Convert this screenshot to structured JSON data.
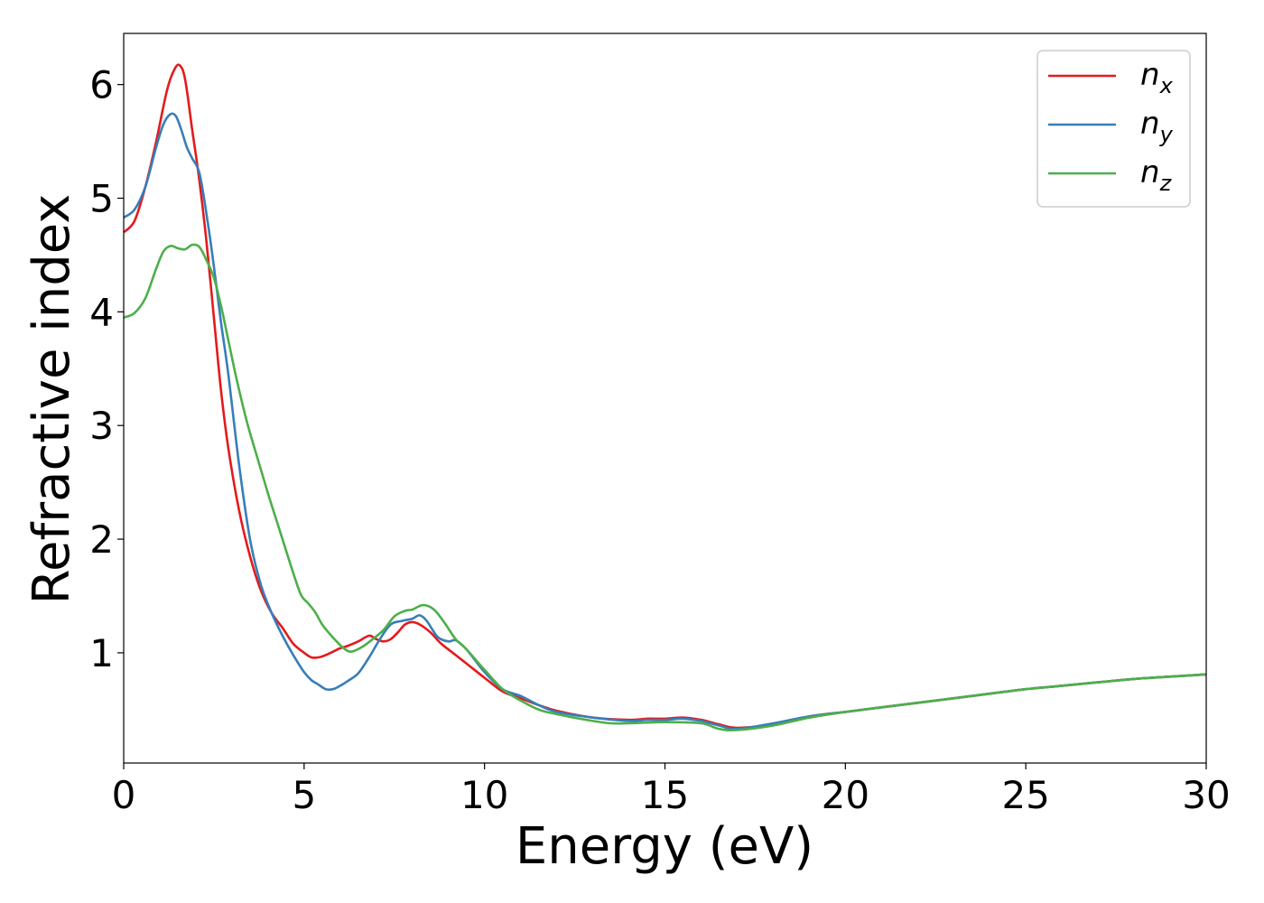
{
  "chart_data": {
    "type": "line",
    "xlabel": "Energy (eV)",
    "ylabel": "Refractive index",
    "xlim": [
      0,
      30
    ],
    "ylim": [
      0.03,
      6.45
    ],
    "x_ticks": [
      0,
      5,
      10,
      15,
      20,
      25,
      30
    ],
    "y_ticks": [
      1,
      2,
      3,
      4,
      5,
      6
    ],
    "x_tick_labels": [
      "0",
      "5",
      "10",
      "15",
      "20",
      "25",
      "30"
    ],
    "y_tick_labels": [
      "1",
      "2",
      "3",
      "4",
      "5",
      "6"
    ],
    "grid": false,
    "legend_position": "top-right",
    "series": [
      {
        "name": "n_x",
        "label_base": "n",
        "label_sub": "x",
        "color": "#e41a1c",
        "x": [
          0,
          0.3,
          0.6,
          0.9,
          1.2,
          1.4,
          1.55,
          1.7,
          1.9,
          2.1,
          2.3,
          2.5,
          2.7,
          2.9,
          3.2,
          3.5,
          3.8,
          4.1,
          4.4,
          4.7,
          5.0,
          5.2,
          5.4,
          5.6,
          5.8,
          6.0,
          6.2,
          6.5,
          6.8,
          7.0,
          7.2,
          7.4,
          7.6,
          7.8,
          8.0,
          8.2,
          8.5,
          8.8,
          9.2,
          9.6,
          10.0,
          10.5,
          11.0,
          11.5,
          12.0,
          13.0,
          14.0,
          14.5,
          15.0,
          15.5,
          16.0,
          16.5,
          17.0,
          18.0,
          19.0,
          20.0,
          21.0,
          22.0,
          23.0,
          24.0,
          25.0,
          26.0,
          27.0,
          28.0,
          29.0,
          30.0
        ],
        "y": [
          4.7,
          4.8,
          5.1,
          5.5,
          5.95,
          6.13,
          6.17,
          6.05,
          5.6,
          5.15,
          4.6,
          3.95,
          3.3,
          2.8,
          2.25,
          1.85,
          1.55,
          1.35,
          1.22,
          1.08,
          1.0,
          0.96,
          0.96,
          0.98,
          1.01,
          1.04,
          1.06,
          1.1,
          1.15,
          1.12,
          1.1,
          1.12,
          1.18,
          1.25,
          1.27,
          1.25,
          1.18,
          1.08,
          0.98,
          0.88,
          0.78,
          0.66,
          0.6,
          0.54,
          0.49,
          0.43,
          0.41,
          0.42,
          0.42,
          0.43,
          0.41,
          0.37,
          0.34,
          0.37,
          0.44,
          0.48,
          0.52,
          0.56,
          0.6,
          0.64,
          0.68,
          0.71,
          0.74,
          0.77,
          0.79,
          0.81
        ]
      },
      {
        "name": "n_y",
        "label_base": "n",
        "label_sub": "y",
        "color": "#377eb8",
        "x": [
          0,
          0.3,
          0.6,
          0.9,
          1.1,
          1.3,
          1.45,
          1.6,
          1.75,
          1.9,
          2.1,
          2.3,
          2.5,
          2.7,
          2.9,
          3.2,
          3.5,
          3.8,
          4.1,
          4.4,
          4.7,
          5.0,
          5.2,
          5.4,
          5.6,
          5.8,
          6.0,
          6.2,
          6.5,
          6.8,
          7.1,
          7.4,
          7.7,
          8.0,
          8.2,
          8.4,
          8.7,
          9.0,
          9.2,
          9.5,
          10.0,
          10.5,
          11.0,
          11.5,
          12.0,
          13.0,
          14.0,
          14.5,
          15.0,
          15.5,
          16.0,
          16.5,
          17.0,
          18.0,
          19.0,
          20.0,
          21.0,
          22.0,
          23.0,
          24.0,
          25.0,
          26.0,
          27.0,
          28.0,
          29.0,
          30.0
        ],
        "y": [
          4.83,
          4.9,
          5.1,
          5.45,
          5.65,
          5.74,
          5.72,
          5.6,
          5.45,
          5.35,
          5.22,
          4.85,
          4.4,
          3.9,
          3.45,
          2.65,
          2.0,
          1.6,
          1.35,
          1.15,
          0.98,
          0.83,
          0.76,
          0.72,
          0.68,
          0.68,
          0.71,
          0.75,
          0.82,
          0.96,
          1.12,
          1.25,
          1.28,
          1.3,
          1.33,
          1.28,
          1.14,
          1.1,
          1.11,
          1.03,
          0.83,
          0.68,
          0.62,
          0.54,
          0.48,
          0.43,
          0.4,
          0.41,
          0.41,
          0.42,
          0.4,
          0.36,
          0.33,
          0.38,
          0.44,
          0.48,
          0.52,
          0.56,
          0.6,
          0.64,
          0.68,
          0.71,
          0.74,
          0.77,
          0.79,
          0.81
        ]
      },
      {
        "name": "n_z",
        "label_base": "n",
        "label_sub": "z",
        "color": "#4daf4a",
        "x": [
          0,
          0.3,
          0.6,
          0.9,
          1.1,
          1.3,
          1.5,
          1.7,
          1.9,
          2.1,
          2.3,
          2.5,
          2.7,
          2.9,
          3.1,
          3.4,
          3.7,
          4.0,
          4.3,
          4.6,
          4.9,
          5.1,
          5.3,
          5.5,
          5.7,
          5.9,
          6.1,
          6.3,
          6.6,
          6.9,
          7.2,
          7.5,
          7.8,
          8.0,
          8.3,
          8.6,
          8.9,
          9.2,
          9.5,
          10.0,
          10.5,
          11.0,
          11.5,
          12.0,
          13.0,
          13.5,
          14.0,
          15.0,
          16.0,
          16.5,
          17.0,
          18.0,
          19.0,
          20.0,
          21.0,
          22.0,
          23.0,
          24.0,
          25.0,
          26.0,
          27.0,
          28.0,
          29.0,
          30.0
        ],
        "y": [
          3.95,
          3.99,
          4.12,
          4.38,
          4.53,
          4.58,
          4.56,
          4.55,
          4.59,
          4.57,
          4.45,
          4.3,
          4.05,
          3.75,
          3.45,
          3.05,
          2.72,
          2.4,
          2.1,
          1.8,
          1.52,
          1.44,
          1.36,
          1.25,
          1.17,
          1.1,
          1.04,
          1.01,
          1.05,
          1.12,
          1.2,
          1.32,
          1.37,
          1.38,
          1.42,
          1.38,
          1.26,
          1.12,
          1.03,
          0.85,
          0.68,
          0.58,
          0.5,
          0.46,
          0.4,
          0.38,
          0.38,
          0.39,
          0.38,
          0.33,
          0.32,
          0.36,
          0.43,
          0.48,
          0.52,
          0.56,
          0.6,
          0.64,
          0.68,
          0.71,
          0.74,
          0.77,
          0.79,
          0.81
        ]
      }
    ]
  }
}
